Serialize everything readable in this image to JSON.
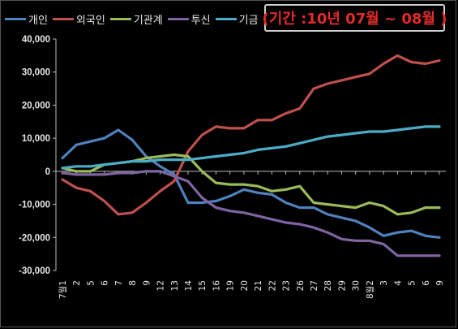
{
  "chart_data": {
    "type": "line",
    "title": "(기간 :10년 07월 ~ 08월 )",
    "xlabel": "",
    "ylabel": "",
    "ylim": [
      -30000,
      40000
    ],
    "yticks": [
      -30000,
      -20000,
      -10000,
      0,
      10000,
      20000,
      30000,
      40000
    ],
    "ytick_labels": [
      "-30,000",
      "-20,000",
      "-10,000",
      "0",
      "10,000",
      "20,000",
      "30,000",
      "40,000"
    ],
    "grid": false,
    "legend": "top-left",
    "categories": [
      "7월1",
      "2",
      "5",
      "6",
      "7",
      "8",
      "9",
      "12",
      "13",
      "14",
      "15",
      "16",
      "19",
      "20",
      "21",
      "22",
      "23",
      "26",
      "27",
      "28",
      "29",
      "30",
      "8월2",
      "3",
      "4",
      "5",
      "6",
      "9"
    ],
    "series": [
      {
        "name": "개인",
        "color": "#4f81bd",
        "values": [
          4000,
          8000,
          9000,
          10000,
          12500,
          9500,
          4500,
          1500,
          -1000,
          -9500,
          -9500,
          -9000,
          -7500,
          -5500,
          -6500,
          -7000,
          -9500,
          -11000,
          -11000,
          -13000,
          -14000,
          -15000,
          -17000,
          -19500,
          -18500,
          -18000,
          -19500,
          -20000
        ]
      },
      {
        "name": "외국인",
        "color": "#c0504d",
        "values": [
          -2500,
          -5000,
          -6000,
          -9000,
          -13000,
          -12500,
          -9500,
          -6000,
          -3000,
          6000,
          11000,
          13500,
          13000,
          13000,
          15500,
          15500,
          17500,
          19000,
          25000,
          26500,
          27500,
          28500,
          29500,
          32500,
          35000,
          33000,
          32500,
          33500
        ]
      },
      {
        "name": "기관계",
        "color": "#9bbb59",
        "values": [
          1000,
          0,
          0,
          2000,
          2500,
          3000,
          4000,
          4500,
          5000,
          4500,
          0,
          -3500,
          -4000,
          -4000,
          -4500,
          -6000,
          -5500,
          -4500,
          -9500,
          -10000,
          -10500,
          -11000,
          -9500,
          -10500,
          -13000,
          -12500,
          -11000,
          -11000
        ]
      },
      {
        "name": "투신",
        "color": "#8064a2",
        "values": [
          -500,
          -1000,
          -1000,
          -1000,
          -500,
          -500,
          0,
          0,
          -1500,
          -3000,
          -8000,
          -11000,
          -12000,
          -12500,
          -13500,
          -14500,
          -15500,
          -16000,
          -17000,
          -18500,
          -20500,
          -21000,
          -21000,
          -22000,
          -25500,
          -25500,
          -25500,
          -25500
        ]
      },
      {
        "name": "기금",
        "color": "#4bacc6",
        "values": [
          1000,
          1500,
          1500,
          2000,
          2500,
          3000,
          3000,
          3500,
          3500,
          3500,
          4000,
          4500,
          5000,
          5500,
          6500,
          7000,
          7500,
          8500,
          9500,
          10500,
          11000,
          11500,
          12000,
          12000,
          12500,
          13000,
          13500,
          13500
        ]
      }
    ]
  }
}
